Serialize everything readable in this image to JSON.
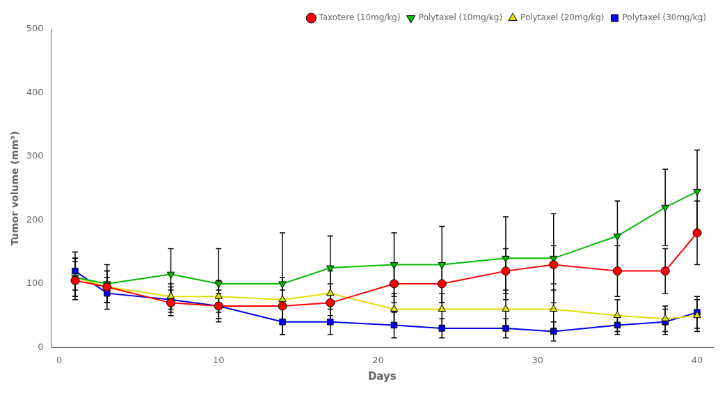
{
  "chart_data": {
    "type": "line",
    "xlabel": "Days",
    "ylabel": "Tumor volume (mm³)",
    "x": [
      1,
      3,
      7,
      10,
      14,
      17,
      21,
      24,
      28,
      31,
      35,
      38,
      40
    ],
    "series": [
      {
        "name": "Taxotere (10mg/kg)",
        "color": "#ff0000",
        "marker": "circle",
        "values": [
          105,
          95,
          70,
          65,
          65,
          70,
          100,
          100,
          120,
          130,
          120,
          120,
          180
        ],
        "yerr": [
          30,
          25,
          20,
          25,
          25,
          30,
          30,
          30,
          35,
          30,
          40,
          35,
          50
        ]
      },
      {
        "name": "Polytaxel (10mg/kg)",
        "color": "#00bb00",
        "marker": "triangle_down",
        "values": [
          110,
          100,
          115,
          100,
          100,
          125,
          130,
          130,
          140,
          140,
          175,
          220,
          245
        ],
        "yerr": [
          30,
          30,
          40,
          55,
          80,
          50,
          50,
          60,
          65,
          70,
          55,
          60,
          65
        ]
      },
      {
        "name": "Polytaxel (20mg/kg)",
        "color": "#dddd00",
        "marker": "triangle_up",
        "values": [
          110,
          95,
          80,
          80,
          75,
          85,
          60,
          60,
          60,
          60,
          50,
          45,
          50
        ],
        "yerr": [
          30,
          25,
          20,
          25,
          35,
          35,
          25,
          25,
          30,
          30,
          25,
          20,
          25
        ]
      },
      {
        "name": "Polytaxel (30mg/kg)",
        "color": "#0000ee",
        "marker": "square",
        "values": [
          120,
          85,
          75,
          65,
          40,
          40,
          35,
          30,
          30,
          25,
          35,
          40,
          55
        ],
        "yerr": [
          30,
          25,
          20,
          20,
          20,
          20,
          20,
          15,
          15,
          15,
          15,
          20,
          25
        ]
      }
    ],
    "xlim": [
      -0.5,
      41
    ],
    "ylim": [
      0,
      500
    ],
    "xticks": [
      0,
      10,
      20,
      30,
      40
    ],
    "yticks": [
      0,
      100,
      200,
      300,
      400,
      500
    ],
    "legend": "upper right",
    "grid": false
  }
}
